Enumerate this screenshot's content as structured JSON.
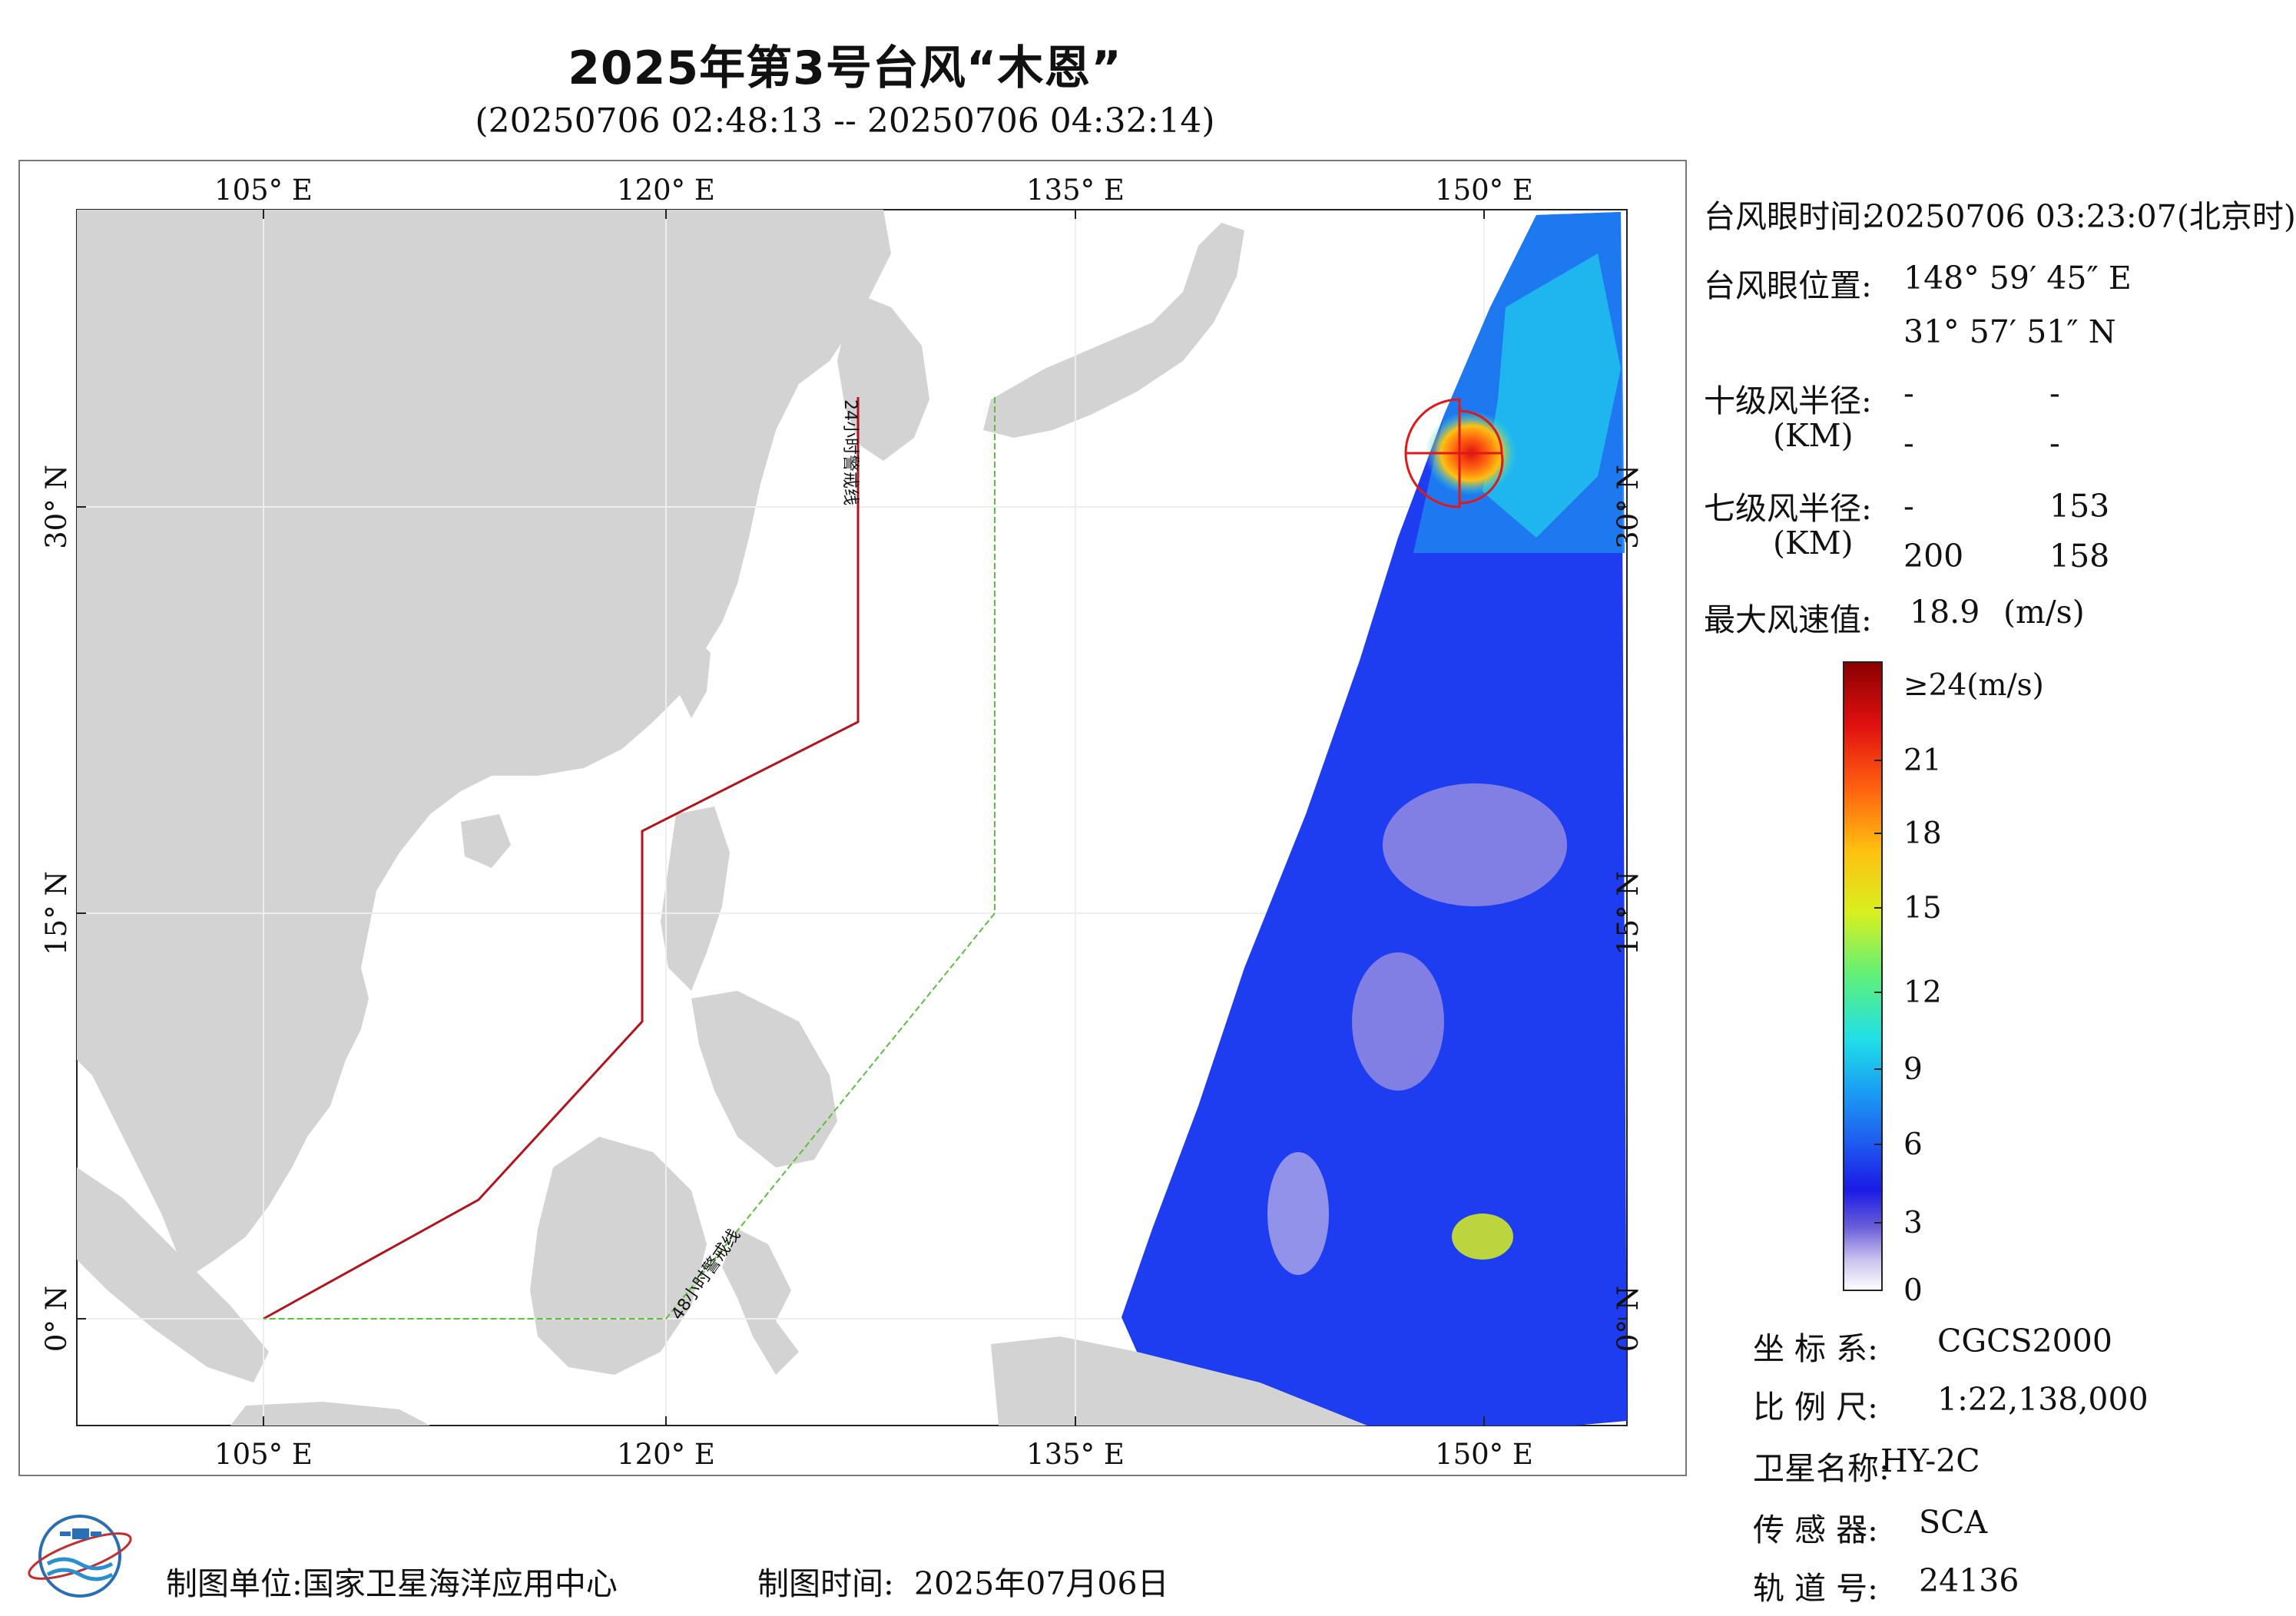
{
  "title": "2025年第3号台风“木恩”",
  "subtitle": "(20250706 02:48:13 -- 20250706 04:32:14)",
  "map": {
    "lon_ticks": [
      "105° E",
      "120° E",
      "135° E",
      "150° E"
    ],
    "lat_ticks": [
      "30° N",
      "15° N",
      "0° N"
    ],
    "line_24h": "24小时警戒线",
    "line_48h": "48小时警戒线",
    "colors": {
      "land": "#d3d3d3",
      "ocean": "#ffffff",
      "line_24h": "#b3141b",
      "line_48h": "#5cbf3c",
      "wind_radius": "#e01818"
    }
  },
  "info": {
    "eye_time_label": "台风眼时间:",
    "eye_time_value": "20250706 03:23:07(北京时)",
    "eye_pos_label": "台风眼位置:",
    "eye_lon": "148° 59′ 45″ E",
    "eye_lat": "31° 57′ 51″ N",
    "r10_label": "十级风半径:",
    "r10_unit": "(KM)",
    "r10_values": [
      "-",
      "-",
      "-",
      "-"
    ],
    "r7_label": "七级风半径:",
    "r7_unit": "(KM)",
    "r7_values": [
      "-",
      "153",
      "200",
      "158"
    ],
    "max_wind_label": "最大风速值:",
    "max_wind_value": "18.9",
    "max_wind_unit": "(m/s)"
  },
  "colorbar": {
    "labels": [
      "≥24(m/s)",
      "21",
      "18",
      "15",
      "12",
      "9",
      "6",
      "3",
      "0"
    ],
    "stops": [
      "#ffffff",
      "#c8c0ee",
      "#6a5fd8",
      "#1a1ae6",
      "#1e5ff0",
      "#1aa0f2",
      "#20e0e8",
      "#5ef07a",
      "#d8f020",
      "#ffc010",
      "#ff6010",
      "#e01010",
      "#8a0000"
    ]
  },
  "meta": {
    "crs_label": "坐 标 系:",
    "crs_value": "CGCS2000",
    "scale_label": "比 例 尺:",
    "scale_value": "1:22,138,000",
    "sat_label": "卫星名称:",
    "sat_value": "HY-2C",
    "sensor_label": "传 感 器:",
    "sensor_value": "SCA",
    "orbit_label": "轨 道 号:",
    "orbit_value": "24136"
  },
  "footer": {
    "org_label": "制图单位:",
    "org_value": "国家卫星海洋应用中心",
    "time_label": "制图时间:",
    "time_value": "2025年07月06日",
    "logo_icon": "nsoas-logo-icon"
  }
}
